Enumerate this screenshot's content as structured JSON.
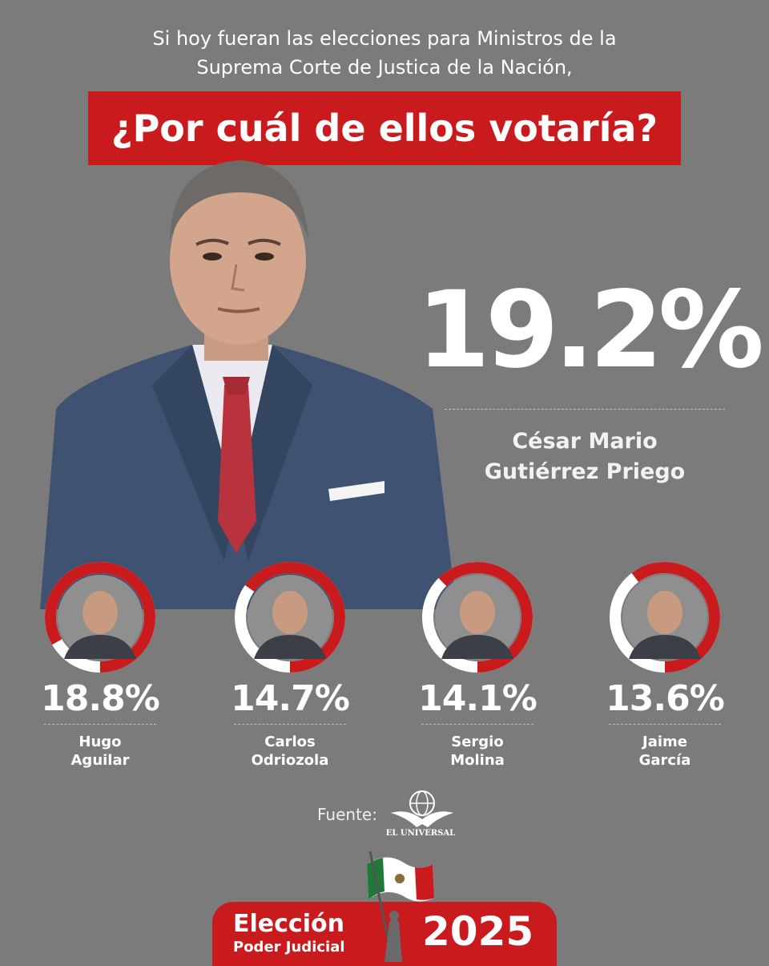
{
  "header": {
    "intro_line1": "Si hoy fueran las elecciones para Ministros de la",
    "intro_line2": "Suprema Corte de Justica de la Nación,",
    "question": "¿Por cuál de ellos votaría?"
  },
  "leader": {
    "percent": "19.2%",
    "value": 19.2,
    "name_line1": "César Mario",
    "name_line2": "Gutiérrez Priego"
  },
  "candidates": [
    {
      "percent": "18.8%",
      "value": 18.8,
      "name_line1": "Hugo",
      "name_line2": "Aguilar"
    },
    {
      "percent": "14.7%",
      "value": 14.7,
      "name_line1": "Carlos",
      "name_line2": "Odriozola"
    },
    {
      "percent": "14.1%",
      "value": 14.1,
      "name_line1": "Sergio",
      "name_line2": "Molina"
    },
    {
      "percent": "13.6%",
      "value": 13.6,
      "name_line1": "Jaime",
      "name_line2": "García"
    }
  ],
  "source": {
    "label": "Fuente:",
    "logo_text": "EL UNIVERSAL",
    "logo_icon": "eagle-globe-icon"
  },
  "badge": {
    "line1": "Elección",
    "line2": "Poder Judicial",
    "year": "2025"
  },
  "colors": {
    "background": "#7b7b7b",
    "accent": "#c91a1e",
    "text": "#ffffff"
  }
}
